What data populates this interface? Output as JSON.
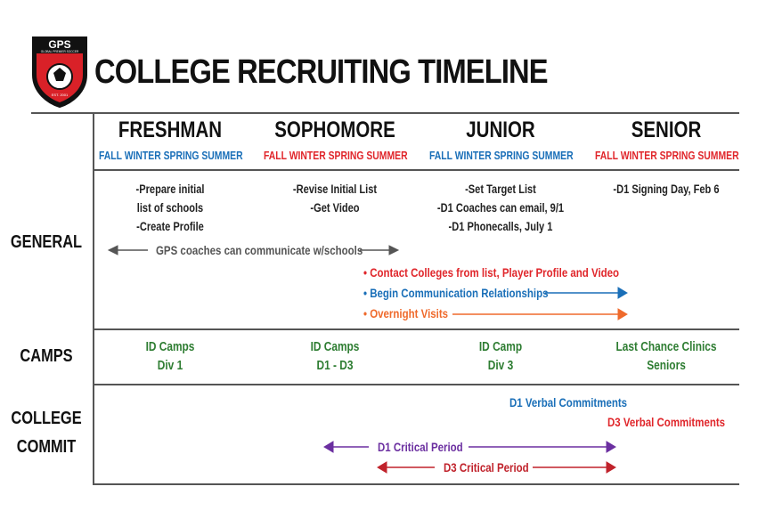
{
  "header": {
    "logo_text": "GPS",
    "logo_subtext": "GLOBAL PREMIER SOCCER",
    "logo_est": "EST. 2001",
    "title": "COLLEGE RECRUITING TIMELINE"
  },
  "columns": [
    {
      "year": "FRESHMAN",
      "seasons": "FALL WINTER SPRING SUMMER",
      "seasons_color": "#1a6fb8"
    },
    {
      "year": "SOPHOMORE",
      "seasons": "FALL WINTER SPRING SUMMER",
      "seasons_color": "#e0262b"
    },
    {
      "year": "JUNIOR",
      "seasons": "FALL WINTER SPRING SUMMER",
      "seasons_color": "#1a6fb8"
    },
    {
      "year": "SENIOR",
      "seasons": "FALL WINTER SPRING SUMMER",
      "seasons_color": "#e0262b"
    }
  ],
  "rows": {
    "general": {
      "label": "GENERAL",
      "freshman": [
        "-Prepare initial",
        "list of schools",
        "-Create Profile"
      ],
      "sophomore": [
        "-Revise Initial List",
        "-Get Video"
      ],
      "junior": [
        "-Set Target List",
        "-D1 Coaches can email, 9/1",
        "-D1 Phonecalls, July 1"
      ],
      "senior": [
        "-D1 Signing Day, Feb 6"
      ],
      "span_text": "GPS coaches can communicate w/schools",
      "bullets": [
        {
          "text": "• Contact Colleges from list, Player Profile and Video",
          "color": "#e0262b"
        },
        {
          "text": "• Begin Communication Relationships",
          "color": "#1a6fb8"
        },
        {
          "text": "• Overnight Visits",
          "color": "#ef6a2c"
        }
      ]
    },
    "camps": {
      "label": "CAMPS",
      "freshman": [
        "ID Camps",
        "Div 1"
      ],
      "sophomore": [
        "ID Camps",
        "D1 - D3"
      ],
      "junior": [
        "ID Camp",
        "Div 3"
      ],
      "senior": [
        "Last Chance Clinics",
        "Seniors"
      ]
    },
    "commit": {
      "label_line1": "COLLEGE",
      "label_line2": "COMMIT",
      "d1_verbal": "D1 Verbal Commitments",
      "d3_verbal": "D3 Verbal Commitments",
      "d1_critical": "D1 Critical Period",
      "d3_critical": "D3 Critical Period"
    }
  },
  "colors": {
    "blue": "#1a6fb8",
    "red": "#e0262b",
    "green": "#2e7d32",
    "purple": "#6b2fa0",
    "dark_red": "#c0222b",
    "orange": "#ef6a2c",
    "gray_arrow": "#555555"
  }
}
